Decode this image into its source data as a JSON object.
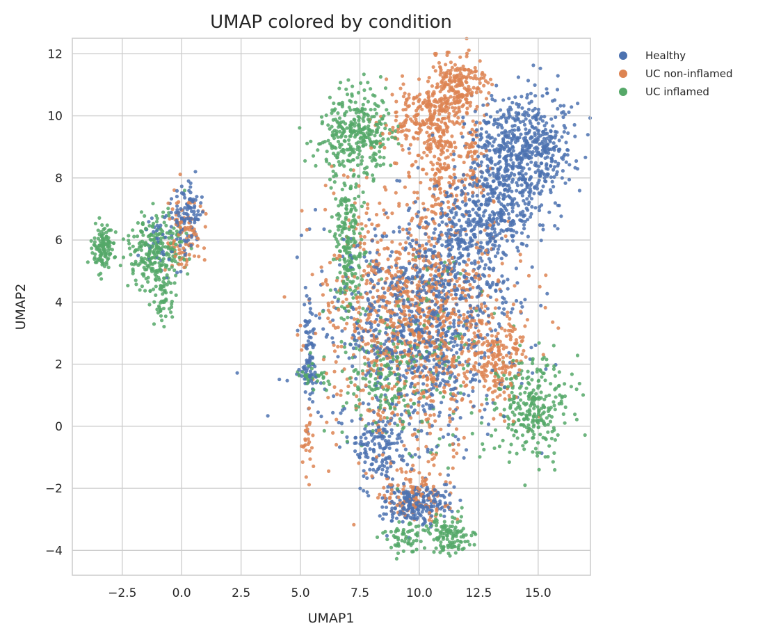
{
  "chart_data": {
    "type": "scatter",
    "title": "UMAP colored by condition",
    "xlabel": "UMAP1",
    "ylabel": "UMAP2",
    "xlim": [
      -4.6,
      17.2
    ],
    "ylim": [
      -4.8,
      12.5
    ],
    "xticks": [
      -2.5,
      0.0,
      2.5,
      5.0,
      7.5,
      10.0,
      12.5,
      15.0
    ],
    "xtick_labels": [
      "−2.5",
      "0.0",
      "2.5",
      "5.0",
      "7.5",
      "10.0",
      "12.5",
      "15.0"
    ],
    "yticks": [
      -4,
      -2,
      0,
      2,
      4,
      6,
      8,
      10,
      12
    ],
    "ytick_labels": [
      "−4",
      "−2",
      "0",
      "2",
      "4",
      "6",
      "8",
      "10",
      "12"
    ],
    "grid": true,
    "legend_position": "outside-top-right",
    "series": [
      {
        "name": "Healthy",
        "color": "#4c72b0",
        "clusters": [
          {
            "cx": 14.4,
            "cy": 9.0,
            "sx": 1.1,
            "sy": 0.9,
            "n": 600
          },
          {
            "cx": 13.2,
            "cy": 6.9,
            "sx": 0.9,
            "sy": 0.8,
            "n": 300
          },
          {
            "cx": 10.2,
            "cy": 3.3,
            "sx": 1.9,
            "sy": 1.8,
            "n": 900
          },
          {
            "cx": 11.6,
            "cy": 5.8,
            "sx": 0.9,
            "sy": 0.9,
            "n": 200
          },
          {
            "cx": 9.8,
            "cy": -2.5,
            "sx": 0.7,
            "sy": 0.35,
            "n": 220
          },
          {
            "cx": 8.3,
            "cy": -0.7,
            "sx": 0.6,
            "sy": 0.6,
            "n": 140
          },
          {
            "cx": 0.2,
            "cy": 6.7,
            "sx": 0.3,
            "sy": 0.5,
            "n": 110
          },
          {
            "cx": -0.8,
            "cy": 6.0,
            "sx": 0.5,
            "sy": 0.5,
            "n": 40
          },
          {
            "cx": 5.4,
            "cy": 2.5,
            "sx": 0.12,
            "sy": 0.7,
            "n": 60
          },
          {
            "cx": 5.3,
            "cy": 1.7,
            "sx": 0.25,
            "sy": 0.2,
            "n": 30
          }
        ]
      },
      {
        "name": "UC non-inflamed",
        "color": "#dd8452",
        "clusters": [
          {
            "cx": 11.5,
            "cy": 10.9,
            "sx": 0.6,
            "sy": 0.45,
            "n": 250
          },
          {
            "cx": 9.8,
            "cy": 9.9,
            "sx": 0.7,
            "sy": 0.5,
            "n": 150
          },
          {
            "cx": 10.9,
            "cy": 8.7,
            "sx": 0.4,
            "sy": 1.0,
            "n": 180
          },
          {
            "cx": 12.2,
            "cy": 8.7,
            "sx": 0.3,
            "sy": 0.9,
            "n": 80
          },
          {
            "cx": 9.9,
            "cy": 3.6,
            "sx": 1.9,
            "sy": 1.9,
            "n": 1050
          },
          {
            "cx": 13.3,
            "cy": 2.2,
            "sx": 0.6,
            "sy": 0.7,
            "n": 180
          },
          {
            "cx": 9.8,
            "cy": -2.2,
            "sx": 0.8,
            "sy": 0.5,
            "n": 120
          },
          {
            "cx": 0.1,
            "cy": 6.2,
            "sx": 0.35,
            "sy": 0.6,
            "n": 90
          },
          {
            "cx": 5.3,
            "cy": -0.6,
            "sx": 0.15,
            "sy": 0.5,
            "n": 25
          }
        ]
      },
      {
        "name": "UC inflamed",
        "color": "#55a868",
        "clusters": [
          {
            "cx": 7.3,
            "cy": 9.4,
            "sx": 0.8,
            "sy": 0.7,
            "n": 330
          },
          {
            "cx": 7.0,
            "cy": 5.7,
            "sx": 0.3,
            "sy": 1.3,
            "n": 220
          },
          {
            "cx": 14.8,
            "cy": 0.6,
            "sx": 0.75,
            "sy": 0.8,
            "n": 280
          },
          {
            "cx": 11.3,
            "cy": -3.5,
            "sx": 0.45,
            "sy": 0.3,
            "n": 120
          },
          {
            "cx": 9.4,
            "cy": -3.6,
            "sx": 0.45,
            "sy": 0.25,
            "n": 60
          },
          {
            "cx": -3.3,
            "cy": 5.7,
            "sx": 0.25,
            "sy": 0.35,
            "n": 120
          },
          {
            "cx": -1.1,
            "cy": 5.6,
            "sx": 0.6,
            "sy": 0.6,
            "n": 260
          },
          {
            "cx": -0.8,
            "cy": 4.0,
            "sx": 0.25,
            "sy": 0.4,
            "n": 50
          },
          {
            "cx": 8.4,
            "cy": 1.5,
            "sx": 1.0,
            "sy": 1.0,
            "n": 160
          },
          {
            "cx": 10.5,
            "cy": 2.3,
            "sx": 1.5,
            "sy": 1.5,
            "n": 120
          },
          {
            "cx": 5.6,
            "cy": 1.6,
            "sx": 0.3,
            "sy": 0.2,
            "n": 30
          }
        ]
      }
    ]
  }
}
